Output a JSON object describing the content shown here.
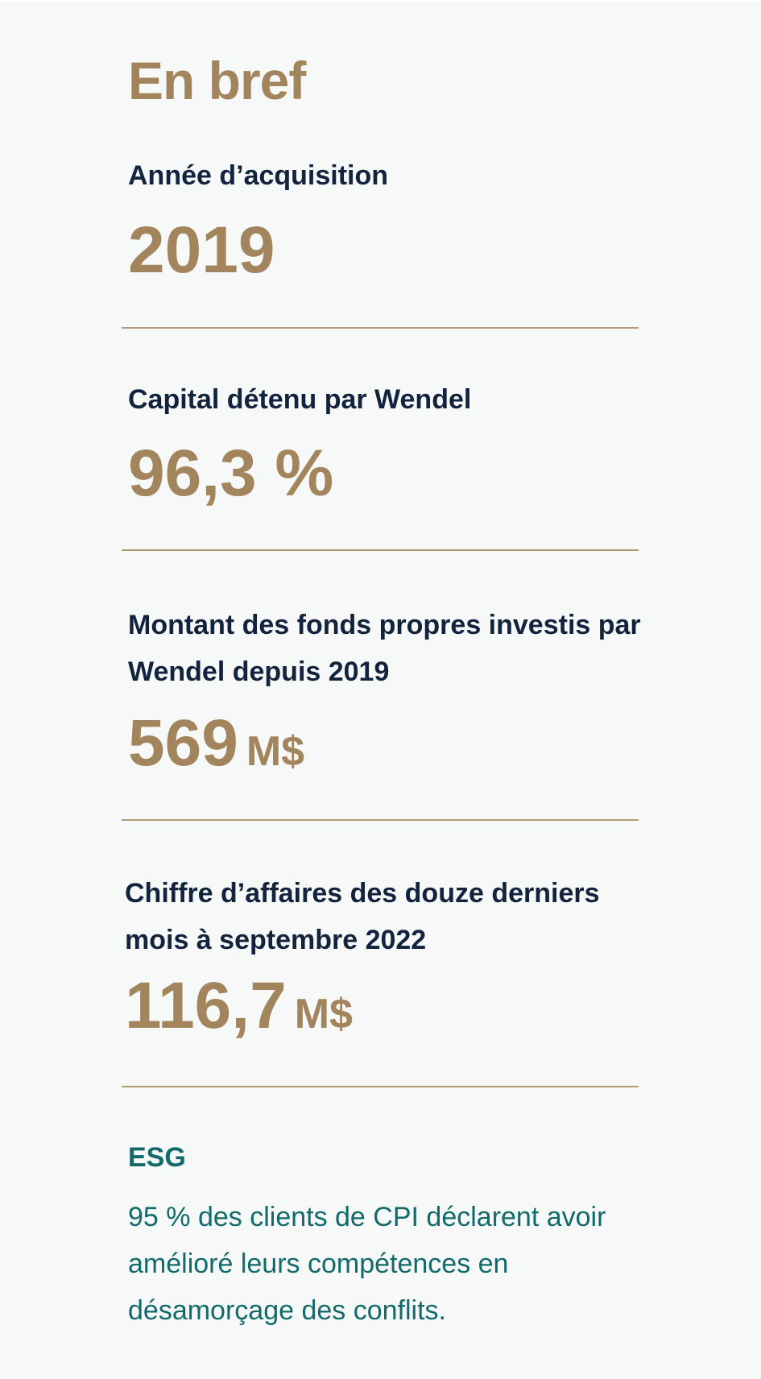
{
  "title": "En bref",
  "facts": [
    {
      "label": "Année d’acquisition",
      "value": "2019",
      "unit": ""
    },
    {
      "label": "Capital détenu par Wendel",
      "value": "96,3 %",
      "unit": ""
    },
    {
      "label": "Montant des fonds propres investis par Wendel depuis 2019",
      "value": "569",
      "unit": "M$"
    },
    {
      "label": "Chiffre d’affaires des douze derniers mois à septembre 2022",
      "value": "116,7",
      "unit": "M$"
    }
  ],
  "esg": {
    "heading": "ESG",
    "text": "95 % des clients de CPI déclarent avoir amélioré leurs compétences en désamorçage des conflits."
  },
  "colors": {
    "accent_gold": "#a2855c",
    "navy": "#12233d",
    "teal": "#116a6c",
    "background": "#f7f8f8"
  }
}
